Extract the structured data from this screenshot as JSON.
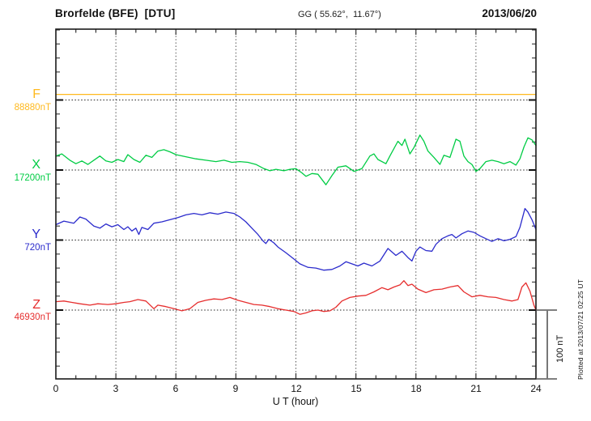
{
  "header": {
    "title": "Brorfelde (BFE)  [DTU]",
    "coordinates": "GG ( 55.62°,  11.67°)",
    "date": "2013/06/20"
  },
  "annotations": {
    "scale_bar_label": "100 nT",
    "plotted_at": "Plotted at 2013/07/21 02:25 UT"
  },
  "chart_data": {
    "type": "line",
    "title": "Brorfelde (BFE) [DTU] magnetogram, 2013/06/20",
    "xlabel": "U T (hour)",
    "x_range": [
      0,
      24
    ],
    "x_ticks": [
      0,
      3,
      6,
      9,
      12,
      15,
      18,
      21,
      24
    ],
    "x_tick_labels": [
      "0",
      "3",
      "6",
      "9",
      "12",
      "15",
      "18",
      "21",
      "24"
    ],
    "grid": "dotted vertical lines every 3 hours; dotted horizontal line at each component baseline",
    "legend_position": "left margin, one colored label per component",
    "scale_bar_nT": 100,
    "minor_tick_nT": 20,
    "series": [
      {
        "name": "F",
        "label": "F",
        "value_label": "88880nT",
        "baseline_nT": 88880,
        "color": "#FFB91E",
        "points": [
          [
            0,
            88888
          ],
          [
            24,
            88888
          ]
        ]
      },
      {
        "name": "X",
        "label": "X",
        "value_label": "17200nT",
        "baseline_nT": 17200,
        "color": "#00CC44",
        "points": [
          [
            0,
            17220
          ],
          [
            0.3,
            17223
          ],
          [
            0.7,
            17214
          ],
          [
            1,
            17209
          ],
          [
            1.3,
            17213
          ],
          [
            1.6,
            17208
          ],
          [
            2,
            17216
          ],
          [
            2.2,
            17220
          ],
          [
            2.5,
            17213
          ],
          [
            2.8,
            17211
          ],
          [
            3.1,
            17215
          ],
          [
            3.4,
            17212
          ],
          [
            3.6,
            17222
          ],
          [
            3.9,
            17215
          ],
          [
            4.2,
            17211
          ],
          [
            4.5,
            17221
          ],
          [
            4.8,
            17218
          ],
          [
            5.1,
            17227
          ],
          [
            5.4,
            17229
          ],
          [
            5.7,
            17226
          ],
          [
            6,
            17222
          ],
          [
            6.5,
            17219
          ],
          [
            7,
            17216
          ],
          [
            7.5,
            17214
          ],
          [
            8,
            17212
          ],
          [
            8.4,
            17214
          ],
          [
            8.8,
            17211
          ],
          [
            9.2,
            17212
          ],
          [
            9.6,
            17211
          ],
          [
            10,
            17208
          ],
          [
            10.4,
            17202
          ],
          [
            10.7,
            17199
          ],
          [
            11,
            17201
          ],
          [
            11.4,
            17199
          ],
          [
            11.7,
            17201
          ],
          [
            12,
            17202
          ],
          [
            12.3,
            17196
          ],
          [
            12.5,
            17191
          ],
          [
            12.8,
            17195
          ],
          [
            13.1,
            17194
          ],
          [
            13.5,
            17179
          ],
          [
            13.8,
            17192
          ],
          [
            14.1,
            17204
          ],
          [
            14.5,
            17206
          ],
          [
            14.9,
            17198
          ],
          [
            15.3,
            17202
          ],
          [
            15.7,
            17220
          ],
          [
            15.9,
            17223
          ],
          [
            16.1,
            17215
          ],
          [
            16.5,
            17209
          ],
          [
            16.7,
            17220
          ],
          [
            17.1,
            17241
          ],
          [
            17.3,
            17235
          ],
          [
            17.45,
            17244
          ],
          [
            17.7,
            17223
          ],
          [
            17.9,
            17232
          ],
          [
            18.2,
            17250
          ],
          [
            18.4,
            17241
          ],
          [
            18.6,
            17227
          ],
          [
            18.9,
            17218
          ],
          [
            19.2,
            17208
          ],
          [
            19.4,
            17221
          ],
          [
            19.7,
            17218
          ],
          [
            20,
            17244
          ],
          [
            20.2,
            17241
          ],
          [
            20.4,
            17220
          ],
          [
            20.6,
            17212
          ],
          [
            20.8,
            17208
          ],
          [
            21,
            17198
          ],
          [
            21.2,
            17202
          ],
          [
            21.5,
            17212
          ],
          [
            21.8,
            17214
          ],
          [
            22.1,
            17212
          ],
          [
            22.4,
            17209
          ],
          [
            22.7,
            17212
          ],
          [
            23,
            17207
          ],
          [
            23.2,
            17216
          ],
          [
            23.4,
            17233
          ],
          [
            23.6,
            17246
          ],
          [
            23.8,
            17243
          ],
          [
            24,
            17235
          ]
        ]
      },
      {
        "name": "Y",
        "label": "Y",
        "value_label": "720nT",
        "baseline_nT": 720,
        "color": "#2B2BCC",
        "points": [
          [
            0,
            742
          ],
          [
            0.4,
            747
          ],
          [
            0.9,
            744
          ],
          [
            1.2,
            753
          ],
          [
            1.5,
            750
          ],
          [
            1.9,
            740
          ],
          [
            2.2,
            737
          ],
          [
            2.5,
            743
          ],
          [
            2.8,
            739
          ],
          [
            3.1,
            742
          ],
          [
            3.4,
            735
          ],
          [
            3.6,
            739
          ],
          [
            3.8,
            733
          ],
          [
            4,
            737
          ],
          [
            4.15,
            728
          ],
          [
            4.3,
            738
          ],
          [
            4.6,
            735
          ],
          [
            4.9,
            744
          ],
          [
            5.3,
            746
          ],
          [
            5.7,
            749
          ],
          [
            6.1,
            752
          ],
          [
            6.5,
            756
          ],
          [
            6.9,
            758
          ],
          [
            7.3,
            756
          ],
          [
            7.7,
            759
          ],
          [
            8.1,
            757
          ],
          [
            8.5,
            760
          ],
          [
            8.9,
            758
          ],
          [
            9.2,
            753
          ],
          [
            9.5,
            746
          ],
          [
            9.8,
            737
          ],
          [
            10.1,
            728
          ],
          [
            10.35,
            719
          ],
          [
            10.5,
            715
          ],
          [
            10.65,
            721
          ],
          [
            10.9,
            716
          ],
          [
            11.1,
            710
          ],
          [
            11.5,
            702
          ],
          [
            11.9,
            693
          ],
          [
            12.2,
            686
          ],
          [
            12.6,
            681
          ],
          [
            13,
            680
          ],
          [
            13.4,
            677
          ],
          [
            13.8,
            678
          ],
          [
            14.2,
            683
          ],
          [
            14.5,
            689
          ],
          [
            14.8,
            686
          ],
          [
            15.1,
            683
          ],
          [
            15.4,
            687
          ],
          [
            15.8,
            683
          ],
          [
            16.2,
            690
          ],
          [
            16.6,
            708
          ],
          [
            17,
            698
          ],
          [
            17.3,
            704
          ],
          [
            17.6,
            695
          ],
          [
            17.8,
            690
          ],
          [
            18,
            704
          ],
          [
            18.2,
            710
          ],
          [
            18.5,
            705
          ],
          [
            18.8,
            704
          ],
          [
            19,
            714
          ],
          [
            19.3,
            722
          ],
          [
            19.6,
            726
          ],
          [
            19.8,
            728
          ],
          [
            20,
            723
          ],
          [
            20.3,
            729
          ],
          [
            20.6,
            733
          ],
          [
            20.9,
            731
          ],
          [
            21.2,
            726
          ],
          [
            21.5,
            722
          ],
          [
            21.8,
            718
          ],
          [
            22.1,
            722
          ],
          [
            22.4,
            719
          ],
          [
            22.7,
            721
          ],
          [
            23,
            725
          ],
          [
            23.2,
            738
          ],
          [
            23.45,
            765
          ],
          [
            23.6,
            760
          ],
          [
            23.8,
            749
          ],
          [
            24,
            735
          ]
        ]
      },
      {
        "name": "Z",
        "label": "Z",
        "value_label": "46930nT",
        "baseline_nT": 46930,
        "color": "#E62E2E",
        "points": [
          [
            0,
            46942
          ],
          [
            0.4,
            46943
          ],
          [
            0.8,
            46941
          ],
          [
            1.2,
            46939
          ],
          [
            1.7,
            46937
          ],
          [
            2.1,
            46939
          ],
          [
            2.6,
            46938
          ],
          [
            3,
            46939
          ],
          [
            3.4,
            46941
          ],
          [
            3.7,
            46942
          ],
          [
            4.1,
            46945
          ],
          [
            4.5,
            46943
          ],
          [
            4.9,
            46932
          ],
          [
            5.1,
            46937
          ],
          [
            5.5,
            46935
          ],
          [
            5.9,
            46932
          ],
          [
            6.3,
            46929
          ],
          [
            6.7,
            46932
          ],
          [
            7.1,
            46941
          ],
          [
            7.5,
            46944
          ],
          [
            7.9,
            46946
          ],
          [
            8.3,
            46945
          ],
          [
            8.7,
            46948
          ],
          [
            9.1,
            46944
          ],
          [
            9.5,
            46941
          ],
          [
            9.9,
            46938
          ],
          [
            10.3,
            46937
          ],
          [
            10.7,
            46935
          ],
          [
            11.1,
            46932
          ],
          [
            11.5,
            46930
          ],
          [
            11.9,
            46928
          ],
          [
            12.2,
            46924
          ],
          [
            12.5,
            46926
          ],
          [
            12.8,
            46929
          ],
          [
            13.1,
            46930
          ],
          [
            13.4,
            46928
          ],
          [
            13.7,
            46929
          ],
          [
            14,
            46934
          ],
          [
            14.3,
            46943
          ],
          [
            14.7,
            46948
          ],
          [
            15.1,
            46950
          ],
          [
            15.5,
            46951
          ],
          [
            15.9,
            46956
          ],
          [
            16.3,
            46962
          ],
          [
            16.6,
            46959
          ],
          [
            16.9,
            46963
          ],
          [
            17.2,
            46966
          ],
          [
            17.4,
            46972
          ],
          [
            17.6,
            46965
          ],
          [
            17.8,
            46967
          ],
          [
            18.1,
            46960
          ],
          [
            18.5,
            46955
          ],
          [
            18.9,
            46959
          ],
          [
            19.3,
            46960
          ],
          [
            19.7,
            46963
          ],
          [
            20.1,
            46965
          ],
          [
            20.4,
            46956
          ],
          [
            20.8,
            46949
          ],
          [
            21.2,
            46951
          ],
          [
            21.6,
            46949
          ],
          [
            22,
            46948
          ],
          [
            22.4,
            46945
          ],
          [
            22.8,
            46943
          ],
          [
            23.1,
            46945
          ],
          [
            23.3,
            46963
          ],
          [
            23.5,
            46969
          ],
          [
            23.7,
            46957
          ],
          [
            23.9,
            46937
          ],
          [
            24,
            46930
          ]
        ]
      }
    ]
  }
}
